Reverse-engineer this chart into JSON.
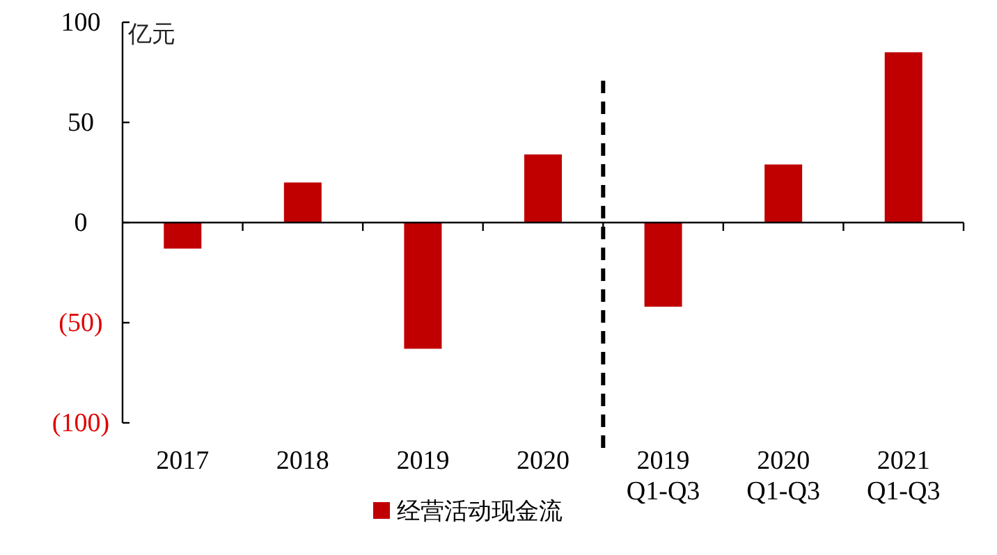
{
  "chart_data": {
    "type": "bar",
    "ylabel": "亿元",
    "categories": [
      "2017",
      "2018",
      "2019",
      "2020",
      "2019\nQ1-Q3",
      "2020\nQ1-Q3",
      "2021\nQ1-Q3"
    ],
    "series": [
      {
        "name": "经营活动现金流",
        "color": "#c00000",
        "values": [
          -13,
          20,
          -63,
          34,
          -42,
          29,
          85
        ]
      }
    ],
    "ylim": [
      -100,
      100
    ],
    "yticks": [
      {
        "value": -100,
        "label": "(100)"
      },
      {
        "value": -50,
        "label": "(50)"
      },
      0,
      50,
      100
    ],
    "legend": "bottom"
  }
}
